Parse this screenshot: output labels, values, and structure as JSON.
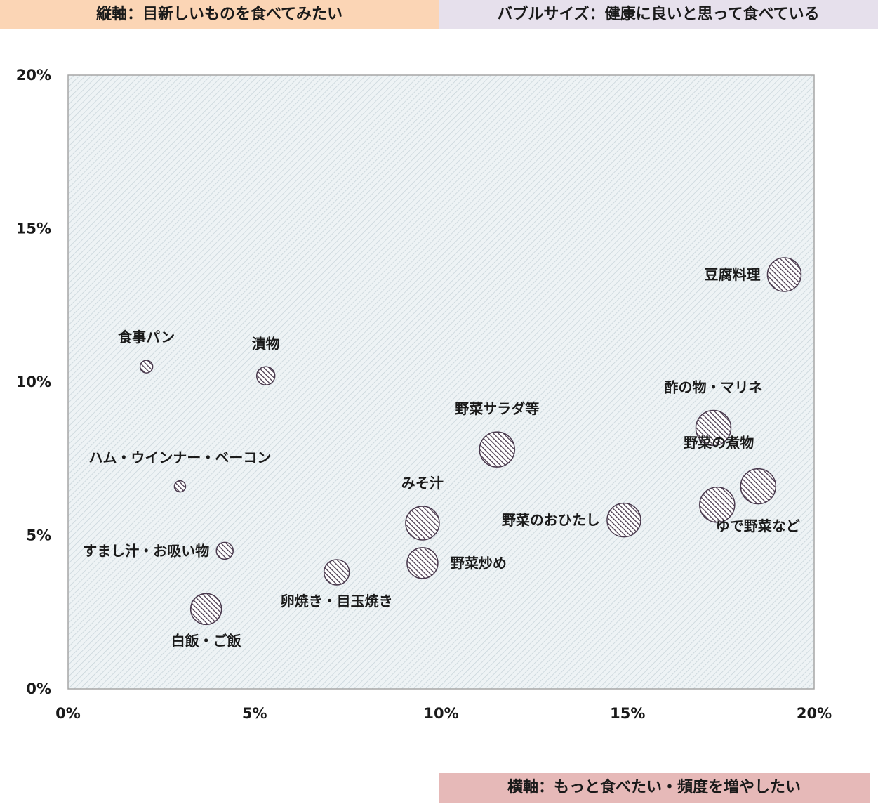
{
  "header": {
    "vertical_axis_legend": "縦軸：目新しいものを食べてみたい",
    "bubble_size_legend": "バブルサイズ：健康に良いと思って食べている"
  },
  "footer": {
    "horizontal_axis_legend": "横軸：もっと食べたい・頻度を増やしたい"
  },
  "colors": {
    "plot_background": "#eef3f5",
    "bubble_fill": "#4a3a4e",
    "header_left_bg": "#fbd5b5",
    "header_right_bg": "#e6e0ec",
    "footer_bg": "#e6b9b8"
  },
  "chart_data": {
    "type": "bubble",
    "xlim": [
      0,
      20
    ],
    "ylim": [
      0,
      20
    ],
    "x_ticks": [
      "0%",
      "5%",
      "10%",
      "15%",
      "20%"
    ],
    "y_ticks": [
      "0%",
      "5%",
      "10%",
      "15%",
      "20%"
    ],
    "grid": false,
    "points": [
      {
        "label": "豆腐料理",
        "x": 19.2,
        "y": 13.5,
        "size": 24,
        "label_pos": "left"
      },
      {
        "label": "食事パン",
        "x": 2.1,
        "y": 10.5,
        "size": 9,
        "label_pos": "above"
      },
      {
        "label": "漬物",
        "x": 5.3,
        "y": 10.2,
        "size": 13,
        "label_pos": "above"
      },
      {
        "label": "酢の物・マリネ",
        "x": 17.3,
        "y": 8.5,
        "size": 25,
        "label_pos": "above"
      },
      {
        "label": "野菜サラダ等",
        "x": 11.5,
        "y": 7.8,
        "size": 25,
        "label_pos": "above"
      },
      {
        "label": "ハム・ウインナー・ベーコン",
        "x": 3.0,
        "y": 6.6,
        "size": 8,
        "label_pos": "above"
      },
      {
        "label": "野菜の煮物",
        "x": 18.5,
        "y": 6.6,
        "size": 25,
        "label_pos": "above-left"
      },
      {
        "label": "ゆで野菜など",
        "x": 17.4,
        "y": 6.0,
        "size": 25,
        "label_pos": "below-right"
      },
      {
        "label": "みそ汁",
        "x": 9.5,
        "y": 5.4,
        "size": 24,
        "label_pos": "above"
      },
      {
        "label": "野菜のおひたし",
        "x": 14.9,
        "y": 5.5,
        "size": 24,
        "label_pos": "left"
      },
      {
        "label": "すまし汁・お吸い物",
        "x": 4.2,
        "y": 4.5,
        "size": 12,
        "label_pos": "left"
      },
      {
        "label": "野菜炒め",
        "x": 9.5,
        "y": 4.1,
        "size": 22,
        "label_pos": "right"
      },
      {
        "label": "卵焼き・目玉焼き",
        "x": 7.2,
        "y": 3.8,
        "size": 18,
        "label_pos": "below"
      },
      {
        "label": "白飯・ご飯",
        "x": 3.7,
        "y": 2.6,
        "size": 22,
        "label_pos": "below"
      }
    ]
  }
}
